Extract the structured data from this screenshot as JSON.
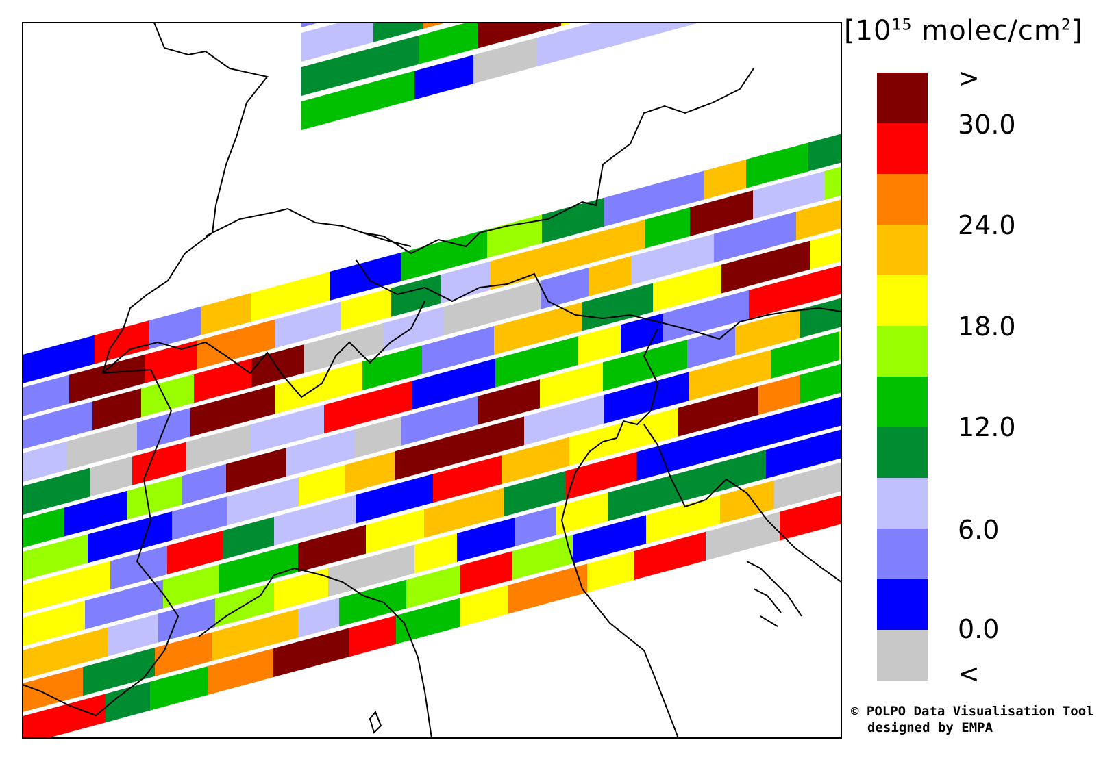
{
  "legend": {
    "unit_base": "10",
    "unit_exp": "15",
    "unit_rest": "molec/cm",
    "unit_sq": "2",
    "labels": [
      ">",
      "30.0",
      "24.0",
      "18.0",
      "12.0",
      "6.0",
      "0.0",
      "<"
    ],
    "bins": [
      {
        "color": "#800000"
      },
      {
        "color": "#ff0000"
      },
      {
        "color": "#ff8000"
      },
      {
        "color": "#ffc000"
      },
      {
        "color": "#ffff00"
      },
      {
        "color": "#99ff00"
      },
      {
        "color": "#00c000"
      },
      {
        "color": "#008c30"
      },
      {
        "color": "#c0c0ff"
      },
      {
        "color": "#8080ff"
      },
      {
        "color": "#0000ff"
      },
      {
        "color": "#c8c8c8"
      }
    ]
  },
  "credit": {
    "line1": "© POLPO Data Visualisation Tool",
    "line2": "designed by EMPA"
  }
}
